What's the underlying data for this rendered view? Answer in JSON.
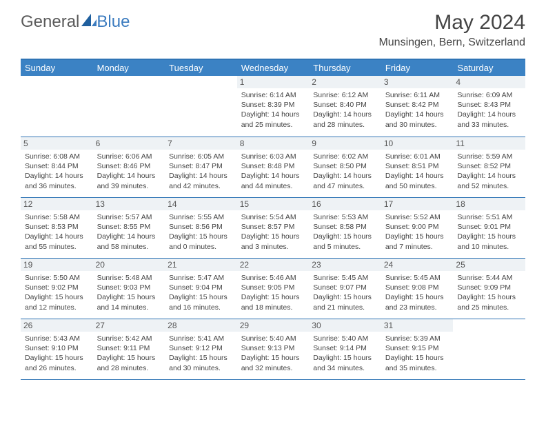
{
  "logo": {
    "part1": "General",
    "part2": "Blue"
  },
  "title": "May 2024",
  "location": "Munsingen, Bern, Switzerland",
  "day_names": [
    "Sunday",
    "Monday",
    "Tuesday",
    "Wednesday",
    "Thursday",
    "Friday",
    "Saturday"
  ],
  "colors": {
    "header_bg": "#3b82c4",
    "border": "#2f74b5",
    "daynum_bg": "#eef2f5",
    "text": "#444444",
    "logo_gray": "#5a5a5a",
    "logo_blue": "#3b7bbf"
  },
  "weeks": [
    [
      null,
      null,
      null,
      {
        "n": "1",
        "sr": "6:14 AM",
        "ss": "8:39 PM",
        "dl": "14 hours and 25 minutes."
      },
      {
        "n": "2",
        "sr": "6:12 AM",
        "ss": "8:40 PM",
        "dl": "14 hours and 28 minutes."
      },
      {
        "n": "3",
        "sr": "6:11 AM",
        "ss": "8:42 PM",
        "dl": "14 hours and 30 minutes."
      },
      {
        "n": "4",
        "sr": "6:09 AM",
        "ss": "8:43 PM",
        "dl": "14 hours and 33 minutes."
      }
    ],
    [
      {
        "n": "5",
        "sr": "6:08 AM",
        "ss": "8:44 PM",
        "dl": "14 hours and 36 minutes."
      },
      {
        "n": "6",
        "sr": "6:06 AM",
        "ss": "8:46 PM",
        "dl": "14 hours and 39 minutes."
      },
      {
        "n": "7",
        "sr": "6:05 AM",
        "ss": "8:47 PM",
        "dl": "14 hours and 42 minutes."
      },
      {
        "n": "8",
        "sr": "6:03 AM",
        "ss": "8:48 PM",
        "dl": "14 hours and 44 minutes."
      },
      {
        "n": "9",
        "sr": "6:02 AM",
        "ss": "8:50 PM",
        "dl": "14 hours and 47 minutes."
      },
      {
        "n": "10",
        "sr": "6:01 AM",
        "ss": "8:51 PM",
        "dl": "14 hours and 50 minutes."
      },
      {
        "n": "11",
        "sr": "5:59 AM",
        "ss": "8:52 PM",
        "dl": "14 hours and 52 minutes."
      }
    ],
    [
      {
        "n": "12",
        "sr": "5:58 AM",
        "ss": "8:53 PM",
        "dl": "14 hours and 55 minutes."
      },
      {
        "n": "13",
        "sr": "5:57 AM",
        "ss": "8:55 PM",
        "dl": "14 hours and 58 minutes."
      },
      {
        "n": "14",
        "sr": "5:55 AM",
        "ss": "8:56 PM",
        "dl": "15 hours and 0 minutes."
      },
      {
        "n": "15",
        "sr": "5:54 AM",
        "ss": "8:57 PM",
        "dl": "15 hours and 3 minutes."
      },
      {
        "n": "16",
        "sr": "5:53 AM",
        "ss": "8:58 PM",
        "dl": "15 hours and 5 minutes."
      },
      {
        "n": "17",
        "sr": "5:52 AM",
        "ss": "9:00 PM",
        "dl": "15 hours and 7 minutes."
      },
      {
        "n": "18",
        "sr": "5:51 AM",
        "ss": "9:01 PM",
        "dl": "15 hours and 10 minutes."
      }
    ],
    [
      {
        "n": "19",
        "sr": "5:50 AM",
        "ss": "9:02 PM",
        "dl": "15 hours and 12 minutes."
      },
      {
        "n": "20",
        "sr": "5:48 AM",
        "ss": "9:03 PM",
        "dl": "15 hours and 14 minutes."
      },
      {
        "n": "21",
        "sr": "5:47 AM",
        "ss": "9:04 PM",
        "dl": "15 hours and 16 minutes."
      },
      {
        "n": "22",
        "sr": "5:46 AM",
        "ss": "9:05 PM",
        "dl": "15 hours and 18 minutes."
      },
      {
        "n": "23",
        "sr": "5:45 AM",
        "ss": "9:07 PM",
        "dl": "15 hours and 21 minutes."
      },
      {
        "n": "24",
        "sr": "5:45 AM",
        "ss": "9:08 PM",
        "dl": "15 hours and 23 minutes."
      },
      {
        "n": "25",
        "sr": "5:44 AM",
        "ss": "9:09 PM",
        "dl": "15 hours and 25 minutes."
      }
    ],
    [
      {
        "n": "26",
        "sr": "5:43 AM",
        "ss": "9:10 PM",
        "dl": "15 hours and 26 minutes."
      },
      {
        "n": "27",
        "sr": "5:42 AM",
        "ss": "9:11 PM",
        "dl": "15 hours and 28 minutes."
      },
      {
        "n": "28",
        "sr": "5:41 AM",
        "ss": "9:12 PM",
        "dl": "15 hours and 30 minutes."
      },
      {
        "n": "29",
        "sr": "5:40 AM",
        "ss": "9:13 PM",
        "dl": "15 hours and 32 minutes."
      },
      {
        "n": "30",
        "sr": "5:40 AM",
        "ss": "9:14 PM",
        "dl": "15 hours and 34 minutes."
      },
      {
        "n": "31",
        "sr": "5:39 AM",
        "ss": "9:15 PM",
        "dl": "15 hours and 35 minutes."
      },
      null
    ]
  ],
  "labels": {
    "sunrise": "Sunrise: ",
    "sunset": "Sunset: ",
    "daylight": "Daylight: "
  }
}
